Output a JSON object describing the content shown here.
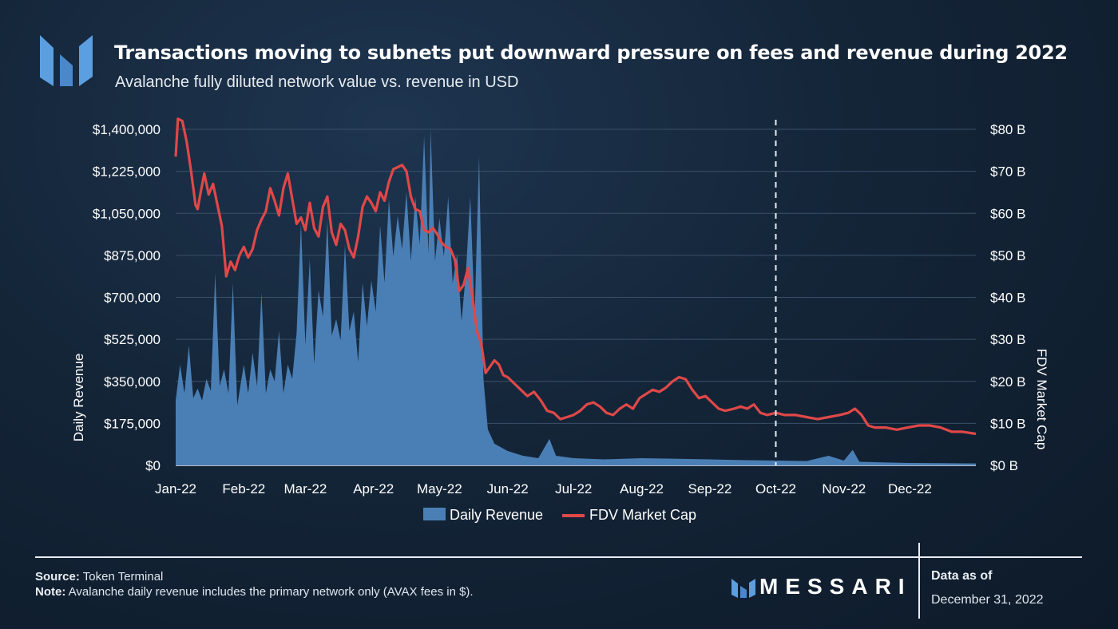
{
  "header": {
    "title": "Transactions moving to subnets put downward pressure on fees and revenue during 2022",
    "subtitle": "Avalanche fully diluted network value vs. revenue in USD"
  },
  "footer": {
    "source_label": "Source:",
    "source_text": "Token Terminal",
    "note_label": "Note:",
    "note_text": "Avalanche daily revenue includes the primary network only (AVAX fees in $).",
    "brand": "MESSARI",
    "asof_label": "Data as of",
    "asof_date": "December 31, 2022"
  },
  "colors": {
    "revenue_fill": "#4a7fb5",
    "fdv_line": "#e04848",
    "brand_blue": "#5b9fe0"
  },
  "chart_data": {
    "type": "area",
    "y_left_label": "Daily Revenue",
    "y_right_label": "FDV Market Cap",
    "y_left_ticks": [
      "$0",
      "$175,000",
      "$350,000",
      "$525,000",
      "$700,000",
      "$875,000",
      "$1,050,000",
      "$1,225,000",
      "$1,400,000"
    ],
    "y_right_ticks": [
      "$0 B",
      "$10 B",
      "$20 B",
      "$30 B",
      "$40 B",
      "$50 B",
      "$60 B",
      "$70 B",
      "$80 B"
    ],
    "y_left_range": [
      0,
      1400000
    ],
    "y_right_range": [
      0,
      80
    ],
    "x_ticks": [
      "Jan-22",
      "Feb-22",
      "Mar-22",
      "Apr-22",
      "May-22",
      "Jun-22",
      "Jul-22",
      "Aug-22",
      "Sep-22",
      "Oct-22",
      "Nov-22",
      "Dec-22"
    ],
    "x_range": [
      "2022-01-01",
      "2022-12-31"
    ],
    "marker_date": "2022-10-01",
    "legend": [
      "Daily Revenue",
      "FDV Market Cap"
    ],
    "series": [
      {
        "name": "Daily Revenue",
        "kind": "area",
        "points": [
          [
            "2022-01-01",
            270000
          ],
          [
            "2022-01-03",
            420000
          ],
          [
            "2022-01-05",
            300000
          ],
          [
            "2022-01-07",
            500000
          ],
          [
            "2022-01-09",
            280000
          ],
          [
            "2022-01-11",
            320000
          ],
          [
            "2022-01-13",
            270000
          ],
          [
            "2022-01-15",
            360000
          ],
          [
            "2022-01-17",
            310000
          ],
          [
            "2022-01-19",
            800000
          ],
          [
            "2022-01-21",
            330000
          ],
          [
            "2022-01-23",
            400000
          ],
          [
            "2022-01-25",
            300000
          ],
          [
            "2022-01-27",
            760000
          ],
          [
            "2022-01-29",
            250000
          ],
          [
            "2022-02-01",
            420000
          ],
          [
            "2022-02-03",
            300000
          ],
          [
            "2022-02-05",
            470000
          ],
          [
            "2022-02-07",
            330000
          ],
          [
            "2022-02-09",
            720000
          ],
          [
            "2022-02-11",
            300000
          ],
          [
            "2022-02-13",
            400000
          ],
          [
            "2022-02-15",
            350000
          ],
          [
            "2022-02-17",
            560000
          ],
          [
            "2022-02-19",
            300000
          ],
          [
            "2022-02-21",
            420000
          ],
          [
            "2022-02-23",
            360000
          ],
          [
            "2022-02-25",
            550000
          ],
          [
            "2022-02-27",
            1010000
          ],
          [
            "2022-03-01",
            500000
          ],
          [
            "2022-03-03",
            860000
          ],
          [
            "2022-03-05",
            420000
          ],
          [
            "2022-03-07",
            730000
          ],
          [
            "2022-03-09",
            620000
          ],
          [
            "2022-03-11",
            1020000
          ],
          [
            "2022-03-13",
            540000
          ],
          [
            "2022-03-15",
            610000
          ],
          [
            "2022-03-17",
            520000
          ],
          [
            "2022-03-19",
            920000
          ],
          [
            "2022-03-21",
            560000
          ],
          [
            "2022-03-23",
            640000
          ],
          [
            "2022-03-25",
            430000
          ],
          [
            "2022-03-27",
            760000
          ],
          [
            "2022-03-29",
            580000
          ],
          [
            "2022-03-31",
            770000
          ],
          [
            "2022-04-02",
            640000
          ],
          [
            "2022-04-04",
            1000000
          ],
          [
            "2022-04-06",
            760000
          ],
          [
            "2022-04-08",
            1110000
          ],
          [
            "2022-04-10",
            870000
          ],
          [
            "2022-04-12",
            1040000
          ],
          [
            "2022-04-14",
            900000
          ],
          [
            "2022-04-16",
            1140000
          ],
          [
            "2022-04-18",
            850000
          ],
          [
            "2022-04-20",
            1120000
          ],
          [
            "2022-04-22",
            920000
          ],
          [
            "2022-04-24",
            1370000
          ],
          [
            "2022-04-26",
            880000
          ],
          [
            "2022-04-27",
            1400000
          ],
          [
            "2022-04-29",
            850000
          ],
          [
            "2022-05-01",
            1030000
          ],
          [
            "2022-05-03",
            870000
          ],
          [
            "2022-05-05",
            1120000
          ],
          [
            "2022-05-07",
            760000
          ],
          [
            "2022-05-09",
            880000
          ],
          [
            "2022-05-11",
            600000
          ],
          [
            "2022-05-13",
            800000
          ],
          [
            "2022-05-15",
            1120000
          ],
          [
            "2022-05-17",
            620000
          ],
          [
            "2022-05-19",
            1290000
          ],
          [
            "2022-05-21",
            360000
          ],
          [
            "2022-05-23",
            150000
          ],
          [
            "2022-05-26",
            90000
          ],
          [
            "2022-06-01",
            60000
          ],
          [
            "2022-06-08",
            40000
          ],
          [
            "2022-06-15",
            30000
          ],
          [
            "2022-06-20",
            110000
          ],
          [
            "2022-06-23",
            40000
          ],
          [
            "2022-07-01",
            30000
          ],
          [
            "2022-07-15",
            25000
          ],
          [
            "2022-08-01",
            30000
          ],
          [
            "2022-08-15",
            28000
          ],
          [
            "2022-09-01",
            25000
          ],
          [
            "2022-09-15",
            22000
          ],
          [
            "2022-10-01",
            20000
          ],
          [
            "2022-10-15",
            18000
          ],
          [
            "2022-10-25",
            40000
          ],
          [
            "2022-11-01",
            20000
          ],
          [
            "2022-11-05",
            65000
          ],
          [
            "2022-11-08",
            15000
          ],
          [
            "2022-11-20",
            12000
          ],
          [
            "2022-12-01",
            10000
          ],
          [
            "2022-12-15",
            9000
          ],
          [
            "2022-12-31",
            8000
          ]
        ]
      },
      {
        "name": "FDV Market Cap",
        "kind": "line",
        "points": [
          [
            "2022-01-01",
            73.5
          ],
          [
            "2022-01-02",
            82.5
          ],
          [
            "2022-01-04",
            82.0
          ],
          [
            "2022-01-06",
            77.0
          ],
          [
            "2022-01-08",
            70.0
          ],
          [
            "2022-01-10",
            62.0
          ],
          [
            "2022-01-11",
            61.0
          ],
          [
            "2022-01-12",
            64.0
          ],
          [
            "2022-01-14",
            69.5
          ],
          [
            "2022-01-16",
            64.5
          ],
          [
            "2022-01-18",
            67.0
          ],
          [
            "2022-01-20",
            62.0
          ],
          [
            "2022-01-22",
            57.0
          ],
          [
            "2022-01-24",
            45.0
          ],
          [
            "2022-01-26",
            48.5
          ],
          [
            "2022-01-28",
            46.5
          ],
          [
            "2022-01-30",
            50.0
          ],
          [
            "2022-02-01",
            52.0
          ],
          [
            "2022-02-03",
            49.5
          ],
          [
            "2022-02-05",
            51.5
          ],
          [
            "2022-02-07",
            56.0
          ],
          [
            "2022-02-09",
            58.5
          ],
          [
            "2022-02-11",
            60.5
          ],
          [
            "2022-02-13",
            66.0
          ],
          [
            "2022-02-15",
            63.0
          ],
          [
            "2022-02-17",
            59.5
          ],
          [
            "2022-02-19",
            66.0
          ],
          [
            "2022-02-21",
            69.5
          ],
          [
            "2022-02-23",
            63.5
          ],
          [
            "2022-02-25",
            57.5
          ],
          [
            "2022-02-27",
            59.0
          ],
          [
            "2022-03-01",
            56.0
          ],
          [
            "2022-03-03",
            62.5
          ],
          [
            "2022-03-05",
            56.5
          ],
          [
            "2022-03-07",
            54.5
          ],
          [
            "2022-03-09",
            61.5
          ],
          [
            "2022-03-11",
            64.0
          ],
          [
            "2022-03-13",
            55.5
          ],
          [
            "2022-03-15",
            52.5
          ],
          [
            "2022-03-17",
            57.5
          ],
          [
            "2022-03-19",
            56.0
          ],
          [
            "2022-03-21",
            51.5
          ],
          [
            "2022-03-23",
            49.5
          ],
          [
            "2022-03-25",
            54.5
          ],
          [
            "2022-03-27",
            61.5
          ],
          [
            "2022-03-29",
            64.0
          ],
          [
            "2022-03-31",
            62.5
          ],
          [
            "2022-04-02",
            60.5
          ],
          [
            "2022-04-04",
            65.0
          ],
          [
            "2022-04-06",
            63.0
          ],
          [
            "2022-04-08",
            67.5
          ],
          [
            "2022-04-10",
            70.5
          ],
          [
            "2022-04-12",
            71.0
          ],
          [
            "2022-04-14",
            71.5
          ],
          [
            "2022-04-16",
            70.0
          ],
          [
            "2022-04-18",
            64.0
          ],
          [
            "2022-04-20",
            61.0
          ],
          [
            "2022-04-22",
            60.5
          ],
          [
            "2022-04-24",
            56.0
          ],
          [
            "2022-04-26",
            55.5
          ],
          [
            "2022-04-28",
            56.5
          ],
          [
            "2022-04-30",
            55.0
          ],
          [
            "2022-05-02",
            53.0
          ],
          [
            "2022-05-04",
            52.0
          ],
          [
            "2022-05-06",
            51.5
          ],
          [
            "2022-05-08",
            49.0
          ],
          [
            "2022-05-10",
            41.5
          ],
          [
            "2022-05-12",
            43.0
          ],
          [
            "2022-05-14",
            47.0
          ],
          [
            "2022-05-16",
            40.0
          ],
          [
            "2022-05-18",
            32.0
          ],
          [
            "2022-05-20",
            29.0
          ],
          [
            "2022-05-22",
            22.0
          ],
          [
            "2022-05-24",
            23.5
          ],
          [
            "2022-05-26",
            25.0
          ],
          [
            "2022-05-28",
            24.0
          ],
          [
            "2022-05-30",
            21.5
          ],
          [
            "2022-06-01",
            21.0
          ],
          [
            "2022-06-04",
            19.5
          ],
          [
            "2022-06-07",
            18.0
          ],
          [
            "2022-06-10",
            16.5
          ],
          [
            "2022-06-13",
            17.5
          ],
          [
            "2022-06-16",
            15.5
          ],
          [
            "2022-06-19",
            13.0
          ],
          [
            "2022-06-22",
            12.5
          ],
          [
            "2022-06-25",
            11.0
          ],
          [
            "2022-06-28",
            11.5
          ],
          [
            "2022-07-01",
            12.0
          ],
          [
            "2022-07-04",
            13.0
          ],
          [
            "2022-07-07",
            14.5
          ],
          [
            "2022-07-10",
            15.0
          ],
          [
            "2022-07-13",
            14.0
          ],
          [
            "2022-07-16",
            12.5
          ],
          [
            "2022-07-19",
            12.0
          ],
          [
            "2022-07-22",
            13.5
          ],
          [
            "2022-07-25",
            14.5
          ],
          [
            "2022-07-28",
            13.5
          ],
          [
            "2022-07-31",
            16.0
          ],
          [
            "2022-08-03",
            17.0
          ],
          [
            "2022-08-06",
            18.0
          ],
          [
            "2022-08-09",
            17.5
          ],
          [
            "2022-08-12",
            18.5
          ],
          [
            "2022-08-15",
            20.0
          ],
          [
            "2022-08-18",
            21.0
          ],
          [
            "2022-08-21",
            20.5
          ],
          [
            "2022-08-24",
            18.0
          ],
          [
            "2022-08-27",
            16.0
          ],
          [
            "2022-08-30",
            16.5
          ],
          [
            "2022-09-02",
            15.0
          ],
          [
            "2022-09-05",
            13.5
          ],
          [
            "2022-09-08",
            13.0
          ],
          [
            "2022-09-12",
            13.5
          ],
          [
            "2022-09-15",
            14.0
          ],
          [
            "2022-09-18",
            13.5
          ],
          [
            "2022-09-21",
            14.5
          ],
          [
            "2022-09-24",
            12.5
          ],
          [
            "2022-09-27",
            12.0
          ],
          [
            "2022-10-01",
            12.5
          ],
          [
            "2022-10-05",
            12.0
          ],
          [
            "2022-10-10",
            12.0
          ],
          [
            "2022-10-15",
            11.5
          ],
          [
            "2022-10-20",
            11.0
          ],
          [
            "2022-10-25",
            11.5
          ],
          [
            "2022-10-30",
            12.0
          ],
          [
            "2022-11-03",
            12.5
          ],
          [
            "2022-11-06",
            13.5
          ],
          [
            "2022-11-09",
            12.0
          ],
          [
            "2022-11-12",
            9.5
          ],
          [
            "2022-11-15",
            9.0
          ],
          [
            "2022-11-20",
            9.0
          ],
          [
            "2022-11-25",
            8.5
          ],
          [
            "2022-11-30",
            9.0
          ],
          [
            "2022-12-05",
            9.5
          ],
          [
            "2022-12-10",
            9.5
          ],
          [
            "2022-12-15",
            9.0
          ],
          [
            "2022-12-20",
            8.0
          ],
          [
            "2022-12-25",
            8.0
          ],
          [
            "2022-12-31",
            7.5
          ]
        ]
      }
    ]
  }
}
